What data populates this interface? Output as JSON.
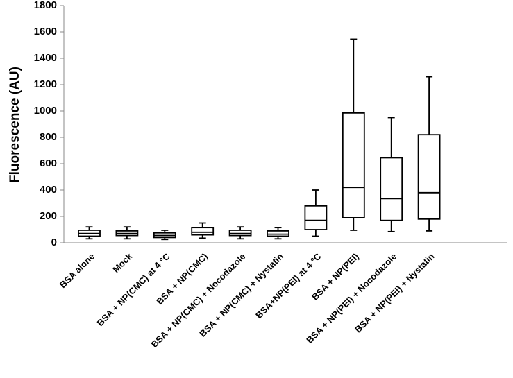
{
  "chart_data": {
    "type": "boxplot",
    "title": "",
    "xlabel": "",
    "ylabel": "Fluorescence (AU)",
    "ylim": [
      0,
      1800
    ],
    "yticks": [
      0,
      200,
      400,
      600,
      800,
      1000,
      1200,
      1400,
      1600,
      1800
    ],
    "ytick_labels": [
      "0",
      "200",
      "400",
      "600",
      "800",
      "1000",
      "1200",
      "1400",
      "1600",
      "1800"
    ],
    "grid": false,
    "categories": [
      "BSA alone",
      "Mock",
      "BSA + NP(CMC) at 4 °C",
      "BSA + NP(CMC)",
      "BSA + NP(CMC) + Nocodazole",
      "BSA + NP(CMC) + Nystatin",
      "BSA+NP(PEI) at 4 °C",
      "BSA + NP(PEI)",
      "BSA + NP(PEI) + Nocodazole",
      "BSA + NP(PEI) + Nystatin"
    ],
    "boxes": [
      {
        "min": 30,
        "q1": 50,
        "median": 70,
        "q3": 95,
        "max": 120
      },
      {
        "min": 30,
        "q1": 55,
        "median": 70,
        "q3": 90,
        "max": 120
      },
      {
        "min": 25,
        "q1": 40,
        "median": 55,
        "q3": 75,
        "max": 95
      },
      {
        "min": 35,
        "q1": 60,
        "median": 80,
        "q3": 115,
        "max": 150
      },
      {
        "min": 30,
        "q1": 55,
        "median": 70,
        "q3": 95,
        "max": 120
      },
      {
        "min": 30,
        "q1": 50,
        "median": 65,
        "q3": 90,
        "max": 115
      },
      {
        "min": 50,
        "q1": 100,
        "median": 170,
        "q3": 280,
        "max": 400
      },
      {
        "min": 95,
        "q1": 190,
        "median": 420,
        "q3": 985,
        "max": 1545
      },
      {
        "min": 85,
        "q1": 170,
        "median": 335,
        "q3": 645,
        "max": 950
      },
      {
        "min": 90,
        "q1": 180,
        "median": 380,
        "q3": 820,
        "max": 1260
      }
    ]
  }
}
